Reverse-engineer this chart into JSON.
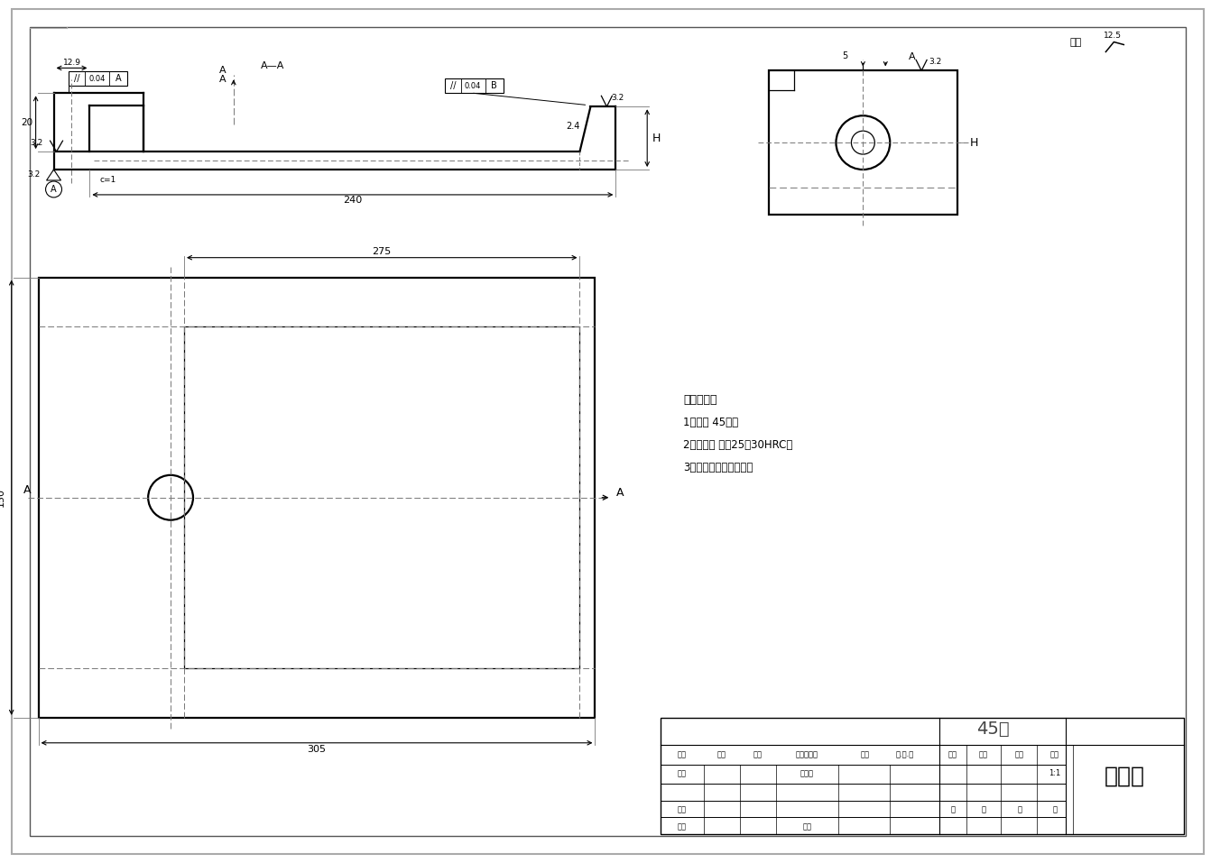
{
  "bg_color": "#ffffff",
  "line_color": "#000000",
  "dashed_color": "#777777",
  "title_material": "45钉",
  "title_part": "夹具体",
  "tech_req_title": "技术要求：",
  "tech_req_1": "1、材料 45钉；",
  "tech_req_2": "2、热处理 调贤25～30HRC；",
  "tech_req_3": "3、锐角倒锁，去毛刺。",
  "surface_finish": "其余",
  "scale": "1:1"
}
